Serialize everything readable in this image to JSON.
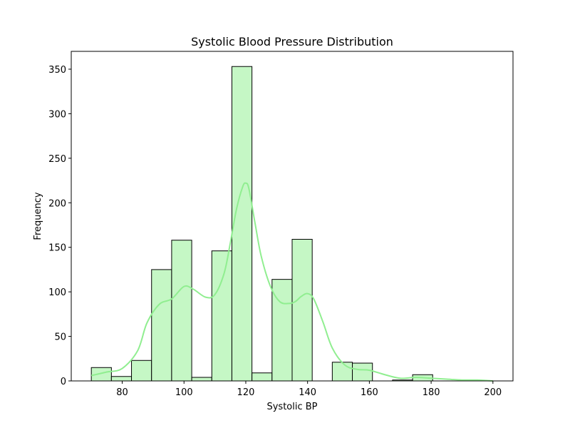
{
  "chart_data": {
    "type": "bar",
    "subtype": "histogram-with-kde",
    "title": "Systolic Blood Pressure Distribution",
    "xlabel": "Systolic BP",
    "ylabel": "Frequency",
    "xlim": [
      63.5,
      206.5
    ],
    "ylim": [
      0,
      370
    ],
    "xticks": [
      80,
      100,
      120,
      140,
      160,
      180,
      200
    ],
    "yticks": [
      0,
      50,
      100,
      150,
      200,
      250,
      300,
      350
    ],
    "bin_edges": [
      70,
      76.5,
      83,
      89.5,
      96,
      102.5,
      109,
      115.5,
      122,
      128.5,
      135,
      141.5,
      148,
      154.5,
      161,
      167.5,
      174,
      180.5,
      187,
      193.5,
      200
    ],
    "counts": [
      15,
      5,
      23,
      125,
      158,
      4,
      146,
      353,
      9,
      114,
      159,
      0,
      21,
      20,
      0,
      1,
      7,
      0,
      0,
      0
    ],
    "bar_fill": "#c5f7c5",
    "bar_edge": "#000000",
    "kde_color": "#90ee90",
    "kde_curve": {
      "x": [
        70,
        75,
        80,
        85,
        88,
        92,
        96,
        100,
        103,
        107,
        110,
        113,
        115,
        117,
        119,
        120,
        121,
        123,
        125,
        128,
        131,
        134,
        136,
        138,
        140,
        142,
        145,
        148,
        152,
        156,
        160,
        165,
        170,
        175,
        180,
        185,
        190,
        195,
        200
      ],
      "y": [
        6,
        10,
        14,
        34,
        65,
        86,
        92,
        106,
        103,
        94,
        97,
        121,
        155,
        193,
        218,
        222,
        216,
        177,
        140,
        106,
        89,
        87,
        89,
        95,
        98,
        92,
        66,
        37,
        18,
        13,
        12,
        7,
        3,
        4,
        3,
        2,
        1,
        1,
        0
      ]
    },
    "grid": false,
    "legend": false
  }
}
